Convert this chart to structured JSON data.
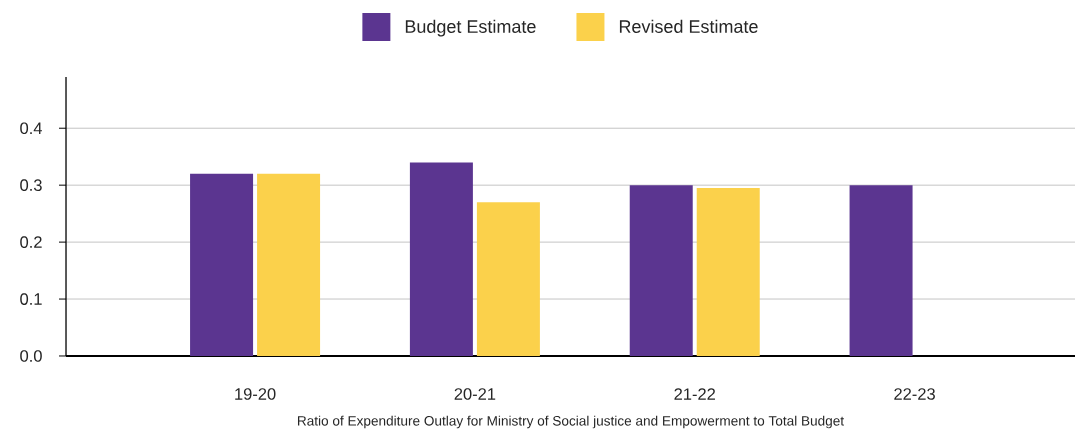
{
  "chart_data": {
    "type": "bar",
    "xlabel": "Ratio of Expenditure Outlay for Ministry of Social justice and Empowerment to Total Budget",
    "categories": [
      "19-20",
      "20-21",
      "21-22",
      "22-23"
    ],
    "series": [
      {
        "name": "Budget Estimate",
        "color": "#5b3590",
        "values": [
          0.32,
          0.34,
          0.3,
          0.3
        ]
      },
      {
        "name": "Revised Estimate",
        "color": "#fbd14b",
        "values": [
          0.32,
          0.27,
          0.295,
          null
        ]
      }
    ],
    "ylim": [
      0,
      0.49
    ],
    "yticks": [
      {
        "value": 0,
        "label": "0.0"
      },
      0.1,
      0.2,
      0.3,
      0.4
    ],
    "grid": "y",
    "legend": "top"
  }
}
